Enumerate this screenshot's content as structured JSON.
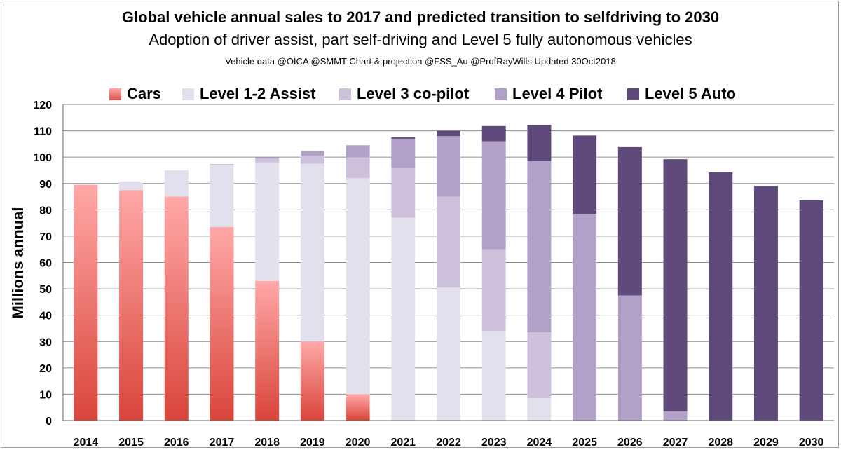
{
  "chart_data": {
    "type": "bar",
    "stacked": true,
    "title": "Global vehicle annual sales to 2017 and predicted transition to selfdriving to 2030",
    "subtitle": "Adoption of driver assist, part self-driving and Level 5 fully autonomous vehicles",
    "credit": "Vehicle data @OICA @SMMT  Chart & projection @FSS_Au @ProfRayWills Updated 30Oct2018",
    "ylabel": "Millions annual",
    "xlabel": "",
    "ylim": [
      0,
      120
    ],
    "yticks": [
      0,
      10,
      20,
      30,
      40,
      50,
      60,
      70,
      80,
      90,
      100,
      110,
      120
    ],
    "grid": true,
    "legend_position": "top",
    "categories": [
      "2014",
      "2015",
      "2016",
      "2017",
      "2018",
      "2019",
      "2020",
      "2021",
      "2022",
      "2023",
      "2024",
      "2025",
      "2026",
      "2027",
      "2028",
      "2029",
      "2030"
    ],
    "series": [
      {
        "name": "Cars",
        "color_top": "#ffa6a6",
        "color_bottom": "#d9453a",
        "values": [
          89.5,
          87.5,
          85,
          73.5,
          53,
          30,
          10,
          0,
          0,
          0,
          0,
          0,
          0,
          0,
          0,
          0,
          0
        ]
      },
      {
        "name": "Level 1-2 Assist",
        "color": "#e4dfec",
        "values": [
          0,
          3.3,
          10,
          23.5,
          45,
          67.5,
          82,
          77,
          50.5,
          34,
          8.5,
          0,
          0,
          0,
          0,
          0,
          0
        ]
      },
      {
        "name": "Level 3 co-pilot",
        "color": "#ccc0da",
        "values": [
          0,
          0,
          0,
          0,
          1.5,
          3,
          8,
          19,
          34.5,
          31,
          25,
          0,
          0,
          0,
          0,
          0,
          0
        ]
      },
      {
        "name": "Level 4 Pilot",
        "color": "#b1a0c7",
        "values": [
          0,
          0,
          0,
          0.3,
          0.5,
          1.8,
          4.5,
          11,
          23,
          41,
          65,
          78.5,
          47.5,
          3.5,
          0,
          0,
          0
        ]
      },
      {
        "name": "Level 5 Auto",
        "color": "#604a7b",
        "values": [
          0,
          0,
          0,
          0,
          0,
          0,
          0,
          0.5,
          2,
          5.8,
          13.7,
          29.7,
          56.3,
          95.7,
          94.2,
          89,
          83.6
        ]
      }
    ]
  }
}
